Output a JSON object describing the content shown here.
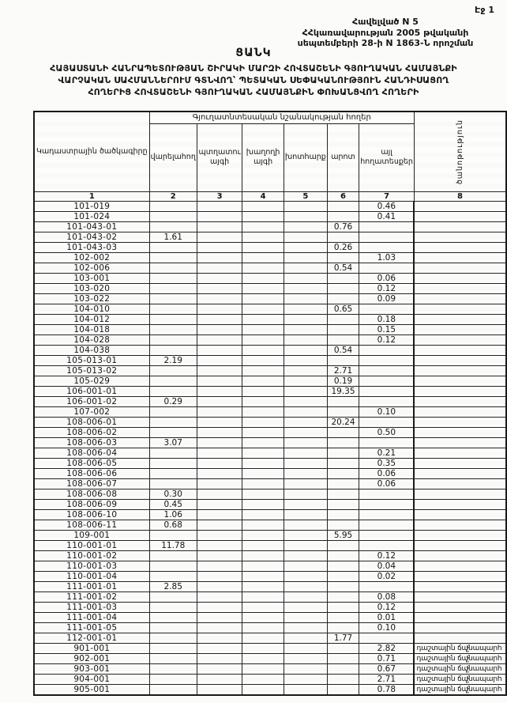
{
  "page": {
    "page_label": "Էջ 1",
    "annex_lines": [
      "Հավելված N 5",
      "ՀՀկառավարության 2005 թվականի",
      "սեպտեմբերի 28-ի N 1863-Ն որոշման"
    ],
    "title": "ՑԱՆԿ",
    "subtitle_lines": [
      "ՀԱՅԱՍՏԱՆԻ ՀԱՆՐԱՊԵՏՈՒԹՅԱՆ ՇԻՐԱԿԻ ՄԱՐԶԻ ՀՈՎՏԱՇԵՆԻ ԳՅՈՒՂԱԿԱՆ ՀԱՄԱՅՆՔԻ",
      "ՎԱՐՉԱԿԱՆ ՍԱՀՄԱՆՆԵՐՈՒՄ ԳՏՆՎՈՂ՝ ՊԵՏԱԿԱՆ ՍԵՓԱԿԱՆՈՒԹՅՈՒՆ ՀԱՆԴԻՍԱՑՈՂ",
      "ՀՈՂԵՐԻՑ ՀՈՎՏԱՇԵՆԻ ԳՅՈՒՂԱԿԱՆ ՀԱՄԱՅՆՔԻՆ ՓՈԽԱՆՑՎՈՂ ՀՈՂԵՐԻ"
    ]
  },
  "table": {
    "col1_header": "Կադաստրային ծածկագիրը",
    "group_header": "Գյուղատնտեսական նշանակության հողեր",
    "sub_headers": [
      "վարելահող",
      "պտղատու այգի",
      "խաղողի այգի",
      "խոտհարք",
      "արոտ",
      "այլ հողատեսքեր"
    ],
    "note_header": "ծանոթություն",
    "column_numbers": [
      "1",
      "2",
      "3",
      "4",
      "5",
      "6",
      "7",
      "8"
    ],
    "mark_char": "չ",
    "rows": [
      {
        "code": "101-019",
        "values": [
          "",
          "",
          "",
          "",
          "",
          "0.46"
        ],
        "note": ""
      },
      {
        "code": "101-024",
        "values": [
          "",
          "",
          "",
          "",
          "",
          "0.41"
        ],
        "note": ""
      },
      {
        "code": "101-043-01",
        "values": [
          "",
          "",
          "",
          "",
          "0.76",
          ""
        ],
        "note": ""
      },
      {
        "code": "101-043-02",
        "values": [
          "1.61",
          "",
          "",
          "",
          "",
          ""
        ],
        "note": ""
      },
      {
        "code": "101-043-03",
        "values": [
          "",
          "",
          "",
          "",
          "0.26",
          ""
        ],
        "note": ""
      },
      {
        "code": "102-002",
        "values": [
          "",
          "",
          "",
          "",
          "",
          "1.03"
        ],
        "note": ""
      },
      {
        "code": "102-006",
        "values": [
          "",
          "",
          "",
          "",
          "0.54",
          ""
        ],
        "note": ""
      },
      {
        "code": "103-001",
        "values": [
          "",
          "",
          "",
          "",
          "",
          "0.06"
        ],
        "note": ""
      },
      {
        "code": "103-020",
        "values": [
          "",
          "",
          "",
          "",
          "",
          "0.12"
        ],
        "note": ""
      },
      {
        "code": "103-022",
        "values": [
          "",
          "",
          "",
          "",
          "",
          "0.09"
        ],
        "note": ""
      },
      {
        "code": "104-010",
        "values": [
          "",
          "",
          "",
          "",
          "0.65",
          ""
        ],
        "note": ""
      },
      {
        "code": "104-012",
        "values": [
          "",
          "",
          "",
          "",
          "",
          "0.18"
        ],
        "note": ""
      },
      {
        "code": "104-018",
        "values": [
          "",
          "",
          "",
          "",
          "",
          "0.15"
        ],
        "note": ""
      },
      {
        "code": "104-028",
        "values": [
          "",
          "",
          "",
          "",
          "",
          "0.12"
        ],
        "note": ""
      },
      {
        "code": "104-038",
        "values": [
          "",
          "",
          "",
          "",
          "0.54",
          ""
        ],
        "note": ""
      },
      {
        "code": "105-013-01",
        "values": [
          "2.19",
          "",
          "",
          "",
          "",
          ""
        ],
        "note": ""
      },
      {
        "code": "105-013-02",
        "values": [
          "",
          "",
          "",
          "",
          "2.71",
          ""
        ],
        "note": ""
      },
      {
        "code": "105-029",
        "values": [
          "",
          "",
          "",
          "",
          "0.19",
          ""
        ],
        "note": ""
      },
      {
        "code": "106-001-01",
        "values": [
          "",
          "",
          "",
          "",
          "19.35",
          ""
        ],
        "note": ""
      },
      {
        "code": "106-001-02",
        "values": [
          "0.29",
          "",
          "",
          "",
          "",
          ""
        ],
        "note": ""
      },
      {
        "code": "107-002",
        "values": [
          "",
          "",
          "",
          "",
          "",
          "0.10"
        ],
        "note": ""
      },
      {
        "code": "108-006-01",
        "values": [
          "",
          "",
          "",
          "",
          "20.24",
          ""
        ],
        "note": ""
      },
      {
        "code": "108-006-02",
        "values": [
          "",
          "",
          "",
          "",
          "",
          "0.50"
        ],
        "note": ""
      },
      {
        "code": "108-006-03",
        "values": [
          "3.07",
          "",
          "",
          "",
          "",
          ""
        ],
        "note": ""
      },
      {
        "code": "108-006-04",
        "values": [
          "",
          "",
          "",
          "",
          "",
          "0.21"
        ],
        "note": ""
      },
      {
        "code": "108-006-05",
        "values": [
          "",
          "",
          "",
          "",
          "",
          "0.35"
        ],
        "note": ""
      },
      {
        "code": "108-006-06",
        "values": [
          "",
          "",
          "",
          "",
          "",
          "0.06"
        ],
        "note": ""
      },
      {
        "code": "108-006-07",
        "values": [
          "",
          "",
          "",
          "",
          "",
          "0.06"
        ],
        "note": ""
      },
      {
        "code": "108-006-08",
        "values": [
          "0.30",
          "",
          "",
          "",
          "",
          ""
        ],
        "note": ""
      },
      {
        "code": "108-006-09",
        "values": [
          "0.45",
          "",
          "",
          "",
          "",
          ""
        ],
        "note": ""
      },
      {
        "code": "108-006-10",
        "values": [
          "1.06",
          "",
          "",
          "",
          "",
          ""
        ],
        "note": ""
      },
      {
        "code": "108-006-11",
        "values": [
          "0.68",
          "",
          "",
          "",
          "",
          ""
        ],
        "note": ""
      },
      {
        "code": "109-001",
        "values": [
          "",
          "",
          "",
          "",
          "5.95",
          ""
        ],
        "note": ""
      },
      {
        "code": "110-001-01",
        "values": [
          "11.78",
          "",
          "",
          "",
          "",
          ""
        ],
        "note": ""
      },
      {
        "code": "110-001-02",
        "values": [
          "",
          "",
          "",
          "",
          "",
          "0.12"
        ],
        "note": ""
      },
      {
        "code": "110-001-03",
        "values": [
          "",
          "",
          "",
          "",
          "",
          "0.04"
        ],
        "note": ""
      },
      {
        "code": "110-001-04",
        "values": [
          "",
          "",
          "",
          "",
          "",
          "0.02"
        ],
        "note": ""
      },
      {
        "code": "111-001-01",
        "values": [
          "2.85",
          "",
          "",
          "",
          "",
          ""
        ],
        "note": ""
      },
      {
        "code": "111-001-02",
        "values": [
          "",
          "",
          "",
          "",
          "",
          "0.08"
        ],
        "note": ""
      },
      {
        "code": "111-001-03",
        "values": [
          "",
          "",
          "",
          "",
          "",
          "0.12"
        ],
        "note": ""
      },
      {
        "code": "111-001-04",
        "values": [
          "",
          "",
          "",
          "",
          "",
          "0.01"
        ],
        "note": ""
      },
      {
        "code": "111-001-05",
        "values": [
          "",
          "",
          "",
          "",
          "",
          "0.10"
        ],
        "note": ""
      },
      {
        "code": "112-001-01",
        "values": [
          "",
          "",
          "",
          "",
          "1.77",
          ""
        ],
        "note": ""
      },
      {
        "code": "901-001",
        "values": [
          "",
          "",
          "",
          "",
          "",
          "2.82"
        ],
        "note": "դաշտային ճանապարհ",
        "mark": true
      },
      {
        "code": "902-001",
        "values": [
          "",
          "",
          "",
          "",
          "",
          "0.71"
        ],
        "note": "դաշտային ճանապարհ",
        "mark": true
      },
      {
        "code": "903-001",
        "values": [
          "",
          "",
          "",
          "",
          "",
          "0.67"
        ],
        "note": "դաշտային ճանապարհ",
        "mark": true
      },
      {
        "code": "904-001",
        "values": [
          "",
          "",
          "",
          "",
          "",
          "2.71"
        ],
        "note": "դաշտային ճանապարհ",
        "mark": true
      },
      {
        "code": "905-001",
        "values": [
          "",
          "",
          "",
          "",
          "",
          "0.78"
        ],
        "note": "դաշտային ճանապարհ",
        "mark": true
      }
    ]
  }
}
